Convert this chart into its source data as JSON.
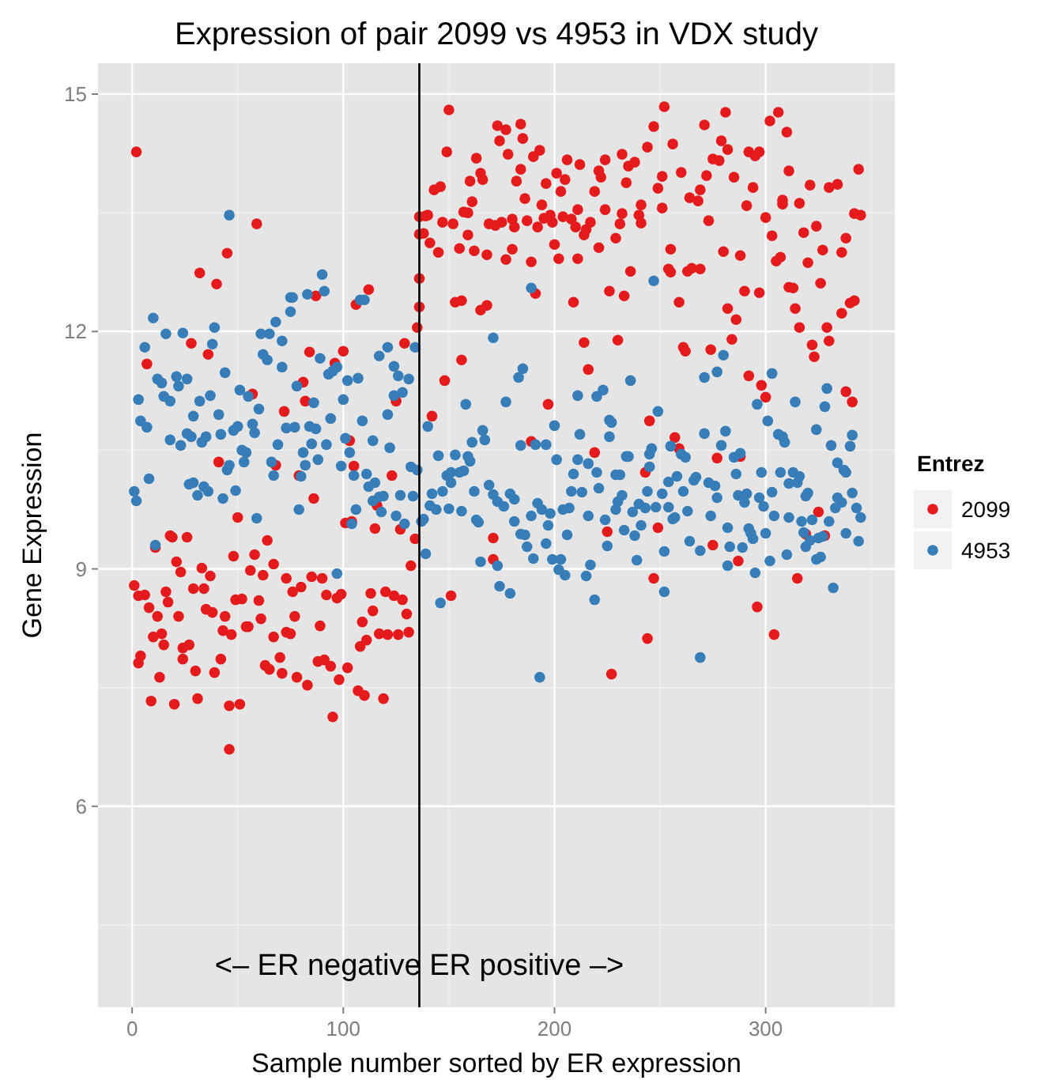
{
  "chart_data": {
    "type": "scatter",
    "title": "Expression of pair 2099 vs 4953 in VDX study",
    "xlabel": "Sample number sorted by ER expression",
    "ylabel": "Gene Expression",
    "legend_title": "Entrez",
    "legend": "right",
    "grid": true,
    "marker": "circle",
    "xlim": [
      -16.15,
      361.15
    ],
    "ylim": [
      3.46,
      15.39
    ],
    "xticks": [
      0,
      100,
      200,
      300
    ],
    "yticks": [
      6,
      9,
      12,
      15
    ],
    "ref_lines": [
      {
        "axis": "x",
        "value": 136,
        "color": "#000000"
      }
    ],
    "annotations": [
      {
        "text": "<– ER negative ER positive –>",
        "x": 136,
        "y": 4
      }
    ],
    "series": [
      {
        "name": "2099",
        "color": "#e41a1c",
        "x": [
          2,
          59,
          45,
          32,
          40,
          87,
          106,
          112,
          28,
          36,
          7,
          84,
          100,
          136,
          136,
          136,
          136,
          135,
          129,
          81,
          96,
          57,
          82,
          125,
          72,
          41,
          68,
          79,
          103,
          105,
          123,
          86,
          50,
          101,
          104,
          116,
          115,
          127,
          134,
          132,
          18,
          19,
          26,
          11,
          64,
          48,
          58,
          21,
          23,
          33,
          37,
          56,
          62,
          67,
          73,
          85,
          90,
          1,
          3,
          6,
          16,
          17,
          8,
          12,
          22,
          29,
          34,
          35,
          38,
          44,
          49,
          52,
          60,
          61,
          76,
          80,
          77,
          92,
          97,
          99,
          113,
          120,
          124,
          128,
          130,
          114,
          109,
          89,
          54,
          55,
          43,
          47,
          73,
          75,
          67,
          10,
          14,
          15,
          24,
          27,
          24,
          4,
          3,
          13,
          30,
          42,
          39,
          63,
          65,
          70,
          71,
          78,
          83,
          88,
          91,
          94,
          98,
          102,
          107,
          110,
          111,
          108,
          117,
          121,
          126,
          131,
          119,
          9,
          20,
          31,
          46,
          51,
          95,
          46,
          150,
          252,
          173,
          177,
          184,
          174,
          185,
          149,
          163,
          178,
          190,
          193,
          247,
          256,
          271,
          281,
          279,
          282,
          302,
          306,
          310,
          292,
          295,
          297,
          275,
          278,
          244,
          232,
          235,
          238,
          224,
          212,
          206,
          184,
          160,
          166,
          165,
          143,
          146,
          201,
          205,
          182,
          196,
          203,
          221,
          222,
          234,
          251,
          249,
          260,
          272,
          285,
          264,
          268,
          269,
          294,
          311,
          321,
          330,
          334,
          344,
          219,
          161,
          186,
          194,
          139,
          140,
          147,
          152,
          157,
          159,
          169,
          172,
          175,
          180,
          181,
          187,
          192,
          195,
          198,
          199,
          204,
          208,
          210,
          211,
          217,
          215,
          214,
          224,
          231,
          232,
          240,
          241,
          241,
          229,
          251,
          273,
          291,
          300,
          308,
          308,
          316,
          303,
          318,
          324,
          338,
          342,
          345,
          138,
          141,
          145,
          155,
          159,
          162,
          168,
          177,
          180,
          189,
          200,
          202,
          211,
          221,
          255,
          254,
          255,
          263,
          265,
          269,
          236,
          280,
          288,
          305,
          307,
          320,
          327,
          336,
          326,
          311,
          313,
          290,
          297,
          226,
          233,
          191,
          153,
          156,
          165,
          168,
          209,
          259,
          282,
          286,
          314,
          316,
          329,
          336,
          340,
          342,
          322,
          323,
          330,
          284,
          274,
          261,
          262,
          214,
          230,
          156,
          148,
          216,
          292,
          298,
          300,
          338,
          341,
          197,
          142,
          245,
          257,
          259,
          189,
          219,
          243,
          277,
          288,
          171,
          171,
          151,
          225,
          249,
          275,
          287,
          325,
          319,
          328,
          247,
          315,
          296,
          304,
          244,
          227
        ],
        "values": [
          14.27,
          13.36,
          12.99,
          12.74,
          12.6,
          12.45,
          12.34,
          12.53,
          11.85,
          11.71,
          11.59,
          11.74,
          11.75,
          13.23,
          13.45,
          12.67,
          12.31,
          12.05,
          11.85,
          11.36,
          11.6,
          11.21,
          11.12,
          11.12,
          10.99,
          10.35,
          10.31,
          10.18,
          10.62,
          10.3,
          10.18,
          9.89,
          9.65,
          9.58,
          9.6,
          9.8,
          9.51,
          9.5,
          9.38,
          9.04,
          9.42,
          9.4,
          9.4,
          9.27,
          9.36,
          9.16,
          9.18,
          9.09,
          8.96,
          9.01,
          8.91,
          8.98,
          8.92,
          9.06,
          8.88,
          8.9,
          8.88,
          8.79,
          8.66,
          8.67,
          8.71,
          8.58,
          8.51,
          8.4,
          8.4,
          8.75,
          8.75,
          8.49,
          8.45,
          8.4,
          8.61,
          8.62,
          8.6,
          8.37,
          8.71,
          8.77,
          8.4,
          8.67,
          8.63,
          8.68,
          8.69,
          8.71,
          8.66,
          8.61,
          8.43,
          8.47,
          8.33,
          8.28,
          8.27,
          8.27,
          8.22,
          8.17,
          8.2,
          8.18,
          8.14,
          8.14,
          8.18,
          8.04,
          8.0,
          8.04,
          7.86,
          7.9,
          7.81,
          7.63,
          7.71,
          7.86,
          7.69,
          7.78,
          7.73,
          7.88,
          7.68,
          7.63,
          7.53,
          7.83,
          7.85,
          7.77,
          7.6,
          7.75,
          7.46,
          7.4,
          8.1,
          8.02,
          8.18,
          8.17,
          8.17,
          8.2,
          7.36,
          7.33,
          7.29,
          7.36,
          7.27,
          7.29,
          7.13,
          6.72,
          14.8,
          14.84,
          14.6,
          14.55,
          14.62,
          14.41,
          14.44,
          14.27,
          14.19,
          14.24,
          14.21,
          14.29,
          14.59,
          14.37,
          14.61,
          14.77,
          14.41,
          14.3,
          14.66,
          14.77,
          14.52,
          14.27,
          14.22,
          14.27,
          14.18,
          14.16,
          14.33,
          14.24,
          14.09,
          14.14,
          14.17,
          14.11,
          14.17,
          14.05,
          13.9,
          13.92,
          14.0,
          13.79,
          13.83,
          14.0,
          13.92,
          13.9,
          13.87,
          13.77,
          14.03,
          13.95,
          13.88,
          13.96,
          13.81,
          14.01,
          13.97,
          13.95,
          13.69,
          13.65,
          13.79,
          13.82,
          14.03,
          13.85,
          13.82,
          13.86,
          14.05,
          13.77,
          13.64,
          13.68,
          13.6,
          13.46,
          13.47,
          13.38,
          13.36,
          13.51,
          13.5,
          13.36,
          13.34,
          13.38,
          13.42,
          13.32,
          13.4,
          13.32,
          13.43,
          13.47,
          13.38,
          13.45,
          13.42,
          13.32,
          13.54,
          13.38,
          13.29,
          13.22,
          13.54,
          13.36,
          13.49,
          13.47,
          13.37,
          13.6,
          13.18,
          13.56,
          13.4,
          13.59,
          13.44,
          13.61,
          13.66,
          13.62,
          13.21,
          13.25,
          13.33,
          13.18,
          13.49,
          13.47,
          13.24,
          13.12,
          13.0,
          13.05,
          13.22,
          13.02,
          12.97,
          12.91,
          13.04,
          12.88,
          13.1,
          12.92,
          12.92,
          13.06,
          13.04,
          12.79,
          12.75,
          12.76,
          12.8,
          12.79,
          12.76,
          13.01,
          12.96,
          12.89,
          12.94,
          12.87,
          13.03,
          13.0,
          12.61,
          12.56,
          12.55,
          12.51,
          12.49,
          12.51,
          12.45,
          12.48,
          12.37,
          12.39,
          12.27,
          12.33,
          12.37,
          12.37,
          12.29,
          12.15,
          12.29,
          12.05,
          12.05,
          12.23,
          12.36,
          12.39,
          11.83,
          11.68,
          11.88,
          11.9,
          11.77,
          11.8,
          11.75,
          11.86,
          11.89,
          11.64,
          11.38,
          11.52,
          11.44,
          11.32,
          11.17,
          11.24,
          11.11,
          11.08,
          10.93,
          10.87,
          10.66,
          10.52,
          10.61,
          10.47,
          10.22,
          10.4,
          10.42,
          9.39,
          9.12,
          8.66,
          9.47,
          9.52,
          9.3,
          9.1,
          9.72,
          9.44,
          9.42,
          8.88,
          8.88,
          8.52,
          8.17,
          8.12,
          7.67
        ]
      },
      {
        "name": "4953",
        "color": "#377eb8",
        "x": [
          46,
          90,
          91,
          75,
          76,
          83,
          75,
          68,
          108,
          110,
          10,
          16,
          24,
          39,
          6,
          38,
          61,
          65,
          71,
          62,
          64,
          71,
          44,
          89,
          97,
          95,
          93,
          121,
          117,
          124,
          126,
          131,
          134,
          102,
          107,
          78,
          12,
          14,
          21,
          22,
          26,
          51,
          37,
          15,
          18,
          3,
          32,
          55,
          86,
          100,
          124,
          128,
          41,
          60,
          4,
          7,
          29,
          18,
          23,
          26,
          28,
          33,
          35,
          42,
          48,
          50,
          57,
          58,
          69,
          73,
          77,
          84,
          87,
          85,
          94,
          92,
          101,
          103,
          109,
          114,
          121,
          122,
          52,
          54,
          46,
          45,
          53,
          66,
          67,
          81,
          82,
          88,
          80,
          99,
          105,
          111,
          8,
          1,
          2,
          27,
          29,
          34,
          36,
          31,
          43,
          49,
          59,
          79,
          106,
          104,
          112,
          115,
          114,
          117,
          119,
          118,
          125,
          129,
          127,
          133,
          132,
          135,
          137,
          11,
          97,
          189,
          247,
          171,
          185,
          183,
          280,
          277,
          271,
          303,
          236,
          223,
          220,
          211,
          158,
          177,
          296,
          314,
          329,
          328,
          249,
          140,
          200,
          166,
          167,
          161,
          212,
          226,
          227,
          226,
          271,
          281,
          279,
          301,
          306,
          308,
          309,
          324,
          341,
          331,
          340,
          184,
          191,
          196,
          145,
          153,
          159,
          160,
          149,
          151,
          155,
          157,
          151,
          142,
          147,
          141,
          144,
          150,
          156,
          138,
          162,
          169,
          171,
          173,
          176,
          179,
          181,
          163,
          164,
          181,
          192,
          194,
          198,
          197,
          184,
          186,
          189,
          187,
          190,
          196,
          165,
          173,
          174,
          179,
          139,
          146,
          199,
          203,
          202,
          205,
          193,
          206,
          204,
          207,
          201,
          211,
          209,
          208,
          213,
          216,
          220,
          216,
          221,
          217,
          215,
          219,
          224,
          225,
          229,
          231,
          232,
          230,
          229,
          234,
          235,
          233,
          238,
          239,
          237,
          240,
          243,
          244,
          245,
          246,
          245,
          241,
          248,
          251,
          254,
          254,
          258,
          255,
          260,
          262,
          256,
          257,
          252,
          252,
          261,
          263,
          264,
          266,
          267,
          269,
          269,
          273,
          276,
          277,
          274,
          282,
          283,
          282,
          286,
          285,
          288,
          287,
          290,
          291,
          289,
          292,
          294,
          293,
          295,
          298,
          297,
          299,
          300,
          302,
          303,
          304,
          307,
          310,
          311,
          313,
          316,
          315,
          311,
          317,
          318,
          319,
          321,
          319,
          320,
          322,
          324,
          326,
          325,
          327,
          330,
          332,
          333,
          334,
          336,
          334,
          337,
          338,
          341,
          343,
          345,
          338,
          344
        ],
        "values": [
          13.47,
          12.72,
          12.51,
          12.43,
          12.43,
          12.47,
          12.25,
          12.12,
          12.4,
          12.4,
          12.17,
          11.97,
          11.98,
          12.05,
          11.8,
          11.84,
          11.97,
          11.97,
          11.88,
          11.71,
          11.64,
          11.55,
          11.48,
          11.66,
          11.55,
          11.5,
          11.46,
          11.8,
          11.69,
          11.56,
          11.44,
          11.4,
          11.8,
          11.38,
          11.41,
          11.31,
          11.4,
          11.35,
          11.43,
          11.31,
          11.4,
          11.26,
          11.19,
          11.18,
          11.12,
          11.14,
          11.12,
          11.18,
          11.1,
          11.14,
          11.19,
          11.23,
          10.95,
          11.02,
          10.87,
          10.79,
          10.93,
          10.63,
          10.56,
          10.71,
          10.67,
          10.6,
          10.67,
          10.7,
          10.75,
          10.8,
          10.83,
          10.72,
          10.57,
          10.78,
          10.79,
          10.8,
          10.77,
          10.58,
          10.9,
          10.57,
          10.65,
          10.47,
          10.87,
          10.62,
          10.95,
          10.53,
          10.5,
          10.47,
          10.31,
          10.25,
          10.35,
          10.35,
          10.18,
          10.47,
          10.31,
          10.38,
          10.17,
          10.3,
          10.18,
          10.2,
          10.14,
          9.98,
          9.86,
          10.07,
          10.09,
          10.04,
          9.98,
          9.93,
          9.89,
          9.99,
          9.64,
          9.75,
          9.75,
          9.57,
          10.04,
          10.09,
          9.86,
          9.91,
          9.92,
          9.72,
          9.67,
          9.57,
          9.93,
          9.92,
          10.29,
          10.25,
          9.6,
          9.3,
          8.94,
          12.55,
          12.64,
          11.92,
          11.53,
          11.42,
          11.7,
          11.49,
          11.42,
          11.47,
          11.38,
          11.26,
          11.18,
          11.19,
          11.08,
          11.11,
          11.08,
          11.11,
          11.28,
          11.05,
          10.99,
          10.8,
          10.81,
          10.75,
          10.63,
          10.6,
          10.7,
          10.88,
          10.85,
          10.67,
          10.71,
          10.74,
          10.56,
          10.87,
          10.7,
          10.67,
          10.6,
          10.76,
          10.69,
          10.56,
          10.55,
          10.56,
          10.57,
          10.57,
          10.43,
          10.44,
          10.42,
          10.36,
          10.18,
          10.22,
          10.22,
          10.24,
          10.09,
          9.95,
          9.98,
          9.8,
          9.75,
          9.76,
          9.73,
          9.63,
          9.98,
          10.06,
          9.94,
          9.85,
          9.79,
          9.95,
          9.88,
          9.62,
          9.59,
          9.6,
          9.83,
          9.75,
          9.7,
          9.55,
          9.44,
          9.43,
          9.67,
          9.28,
          9.13,
          9.32,
          9.09,
          9.04,
          8.78,
          8.69,
          9.19,
          8.57,
          9.12,
          9.12,
          8.99,
          8.92,
          7.63,
          9.43,
          9.75,
          9.77,
          10.38,
          10.38,
          10.2,
          9.98,
          9.97,
          10.33,
          10.22,
          9.67,
          10.02,
          9.05,
          8.91,
          8.61,
          9.62,
          9.29,
          10.19,
          10.19,
          9.93,
          9.85,
          9.75,
          10.42,
          10.42,
          9.49,
          9.42,
          9.11,
          9.72,
          9.82,
          9.77,
          9.98,
          10.45,
          10.52,
          10.29,
          9.55,
          9.78,
          9.95,
          9.78,
          10.1,
          10.17,
          10.55,
          10.45,
          10.41,
          9.63,
          9.65,
          9.22,
          8.71,
          9.98,
          9.73,
          9.35,
          10.12,
          10.16,
          9.23,
          7.88,
          10.09,
          10.05,
          9.9,
          9.67,
          9.52,
          9.28,
          9.04,
          10.2,
          10.41,
          10.46,
          9.93,
          9.84,
          9.95,
          9.27,
          9.51,
          9.38,
          9.45,
          8.95,
          10.22,
          9.9,
          9.79,
          9.45,
          9.1,
          9.97,
          9.67,
          10.22,
          9.18,
          10.08,
          10.22,
          10.17,
          10.09,
          9.65,
          9.6,
          9.46,
          9.28,
          9.36,
          9.92,
          9.96,
          9.62,
          9.12,
          9.15,
          9.39,
          9.41,
          9.6,
          8.76,
          9.77,
          9.9,
          9.84,
          10.34,
          10.25,
          10.22,
          9.96,
          9.77,
          9.65,
          9.45,
          9.35
        ]
      }
    ]
  }
}
